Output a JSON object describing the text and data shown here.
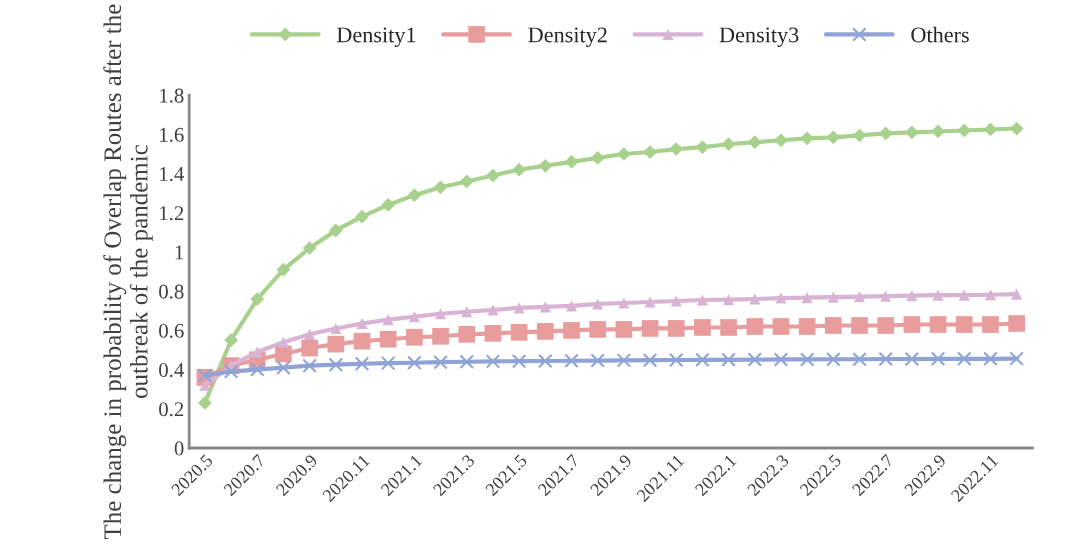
{
  "chart_data": {
    "type": "line",
    "ylabel": "The change in probability of Overlap Routes after the outbreak of the pandemic",
    "categories": [
      "2020.5",
      null,
      "2020.7",
      null,
      "2020.9",
      null,
      "2020.11",
      null,
      "2021.1",
      null,
      "2021.3",
      null,
      "2021.5",
      null,
      "2021.7",
      null,
      "2021.9",
      null,
      "2021.11",
      null,
      "2022.1",
      null,
      "2022.3",
      null,
      "2022.5",
      null,
      "2022.7",
      null,
      "2022.9",
      null,
      "2022.11",
      null
    ],
    "series": [
      {
        "name": "Density1",
        "color": "#a9d18e",
        "marker": "diamond",
        "values": [
          0.23,
          0.55,
          0.76,
          0.91,
          1.02,
          1.11,
          1.18,
          1.24,
          1.29,
          1.33,
          1.36,
          1.39,
          1.42,
          1.44,
          1.46,
          1.48,
          1.5,
          1.51,
          1.525,
          1.535,
          1.55,
          1.56,
          1.57,
          1.58,
          1.585,
          1.595,
          1.605,
          1.61,
          1.615,
          1.62,
          1.625,
          1.63
        ]
      },
      {
        "name": "Density2",
        "color": "#e89c9c",
        "marker": "square",
        "values": [
          0.36,
          0.42,
          0.45,
          0.48,
          0.51,
          0.53,
          0.545,
          0.555,
          0.565,
          0.57,
          0.58,
          0.585,
          0.59,
          0.595,
          0.6,
          0.605,
          0.605,
          0.61,
          0.61,
          0.615,
          0.615,
          0.62,
          0.62,
          0.62,
          0.625,
          0.625,
          0.625,
          0.63,
          0.63,
          0.63,
          0.63,
          0.635
        ]
      },
      {
        "name": "Density3",
        "color": "#d9b3d4",
        "marker": "triangle",
        "values": [
          0.32,
          0.42,
          0.49,
          0.54,
          0.58,
          0.61,
          0.635,
          0.655,
          0.67,
          0.685,
          0.695,
          0.705,
          0.715,
          0.72,
          0.725,
          0.735,
          0.74,
          0.745,
          0.75,
          0.755,
          0.757,
          0.76,
          0.765,
          0.767,
          0.77,
          0.772,
          0.775,
          0.777,
          0.78,
          0.78,
          0.782,
          0.785
        ]
      },
      {
        "name": "Others",
        "color": "#8fa3d6",
        "marker": "cross",
        "values": [
          0.37,
          0.39,
          0.4,
          0.41,
          0.42,
          0.425,
          0.43,
          0.433,
          0.435,
          0.438,
          0.44,
          0.442,
          0.443,
          0.444,
          0.445,
          0.446,
          0.447,
          0.448,
          0.449,
          0.45,
          0.45,
          0.451,
          0.452,
          0.452,
          0.453,
          0.453,
          0.454,
          0.454,
          0.455,
          0.455,
          0.455,
          0.456
        ]
      }
    ],
    "ylim": [
      0,
      1.8
    ],
    "yticks": [
      0,
      0.2,
      0.4,
      0.6,
      0.8,
      1,
      1.2,
      1.4,
      1.6,
      1.8
    ],
    "grid": false,
    "legend": "top",
    "line_style": "solid"
  }
}
